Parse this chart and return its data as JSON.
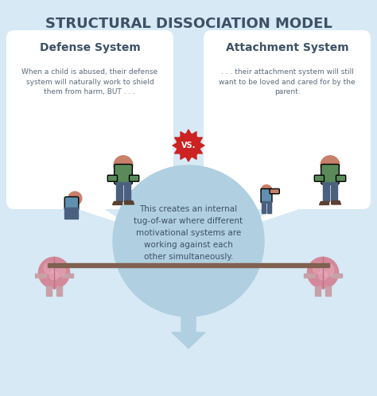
{
  "title": "STRUCTURAL DISSOCIATION MODEL",
  "bg_color": "#d6e9f5",
  "card_color": "#ffffff",
  "title_color": "#3d5166",
  "card_title_left": "Defense System",
  "card_title_right": "Attachment System",
  "card_text_left": "When a child is abused, their defense\nsystem will naturally work to shield\nthem from harm, BUT . . .",
  "card_text_right": ". . . their attachment system will still\nwant to be loved and cared for by the\nparent.",
  "vs_text": "VS.",
  "vs_bg": "#cc2222",
  "circle_text": "This creates an internal\ntug-of-war where different\nmotivational systems are\nworking against each\nother simultaneously.",
  "circle_color": "#b0cfe0",
  "text_color": "#5a6a7a",
  "body_color": "#c8806a",
  "shirt_color_adult": "#5a8a5a",
  "shirt_color_child": "#6090b0",
  "pants_color": "#4a6080",
  "brain_color": "#d4899a"
}
